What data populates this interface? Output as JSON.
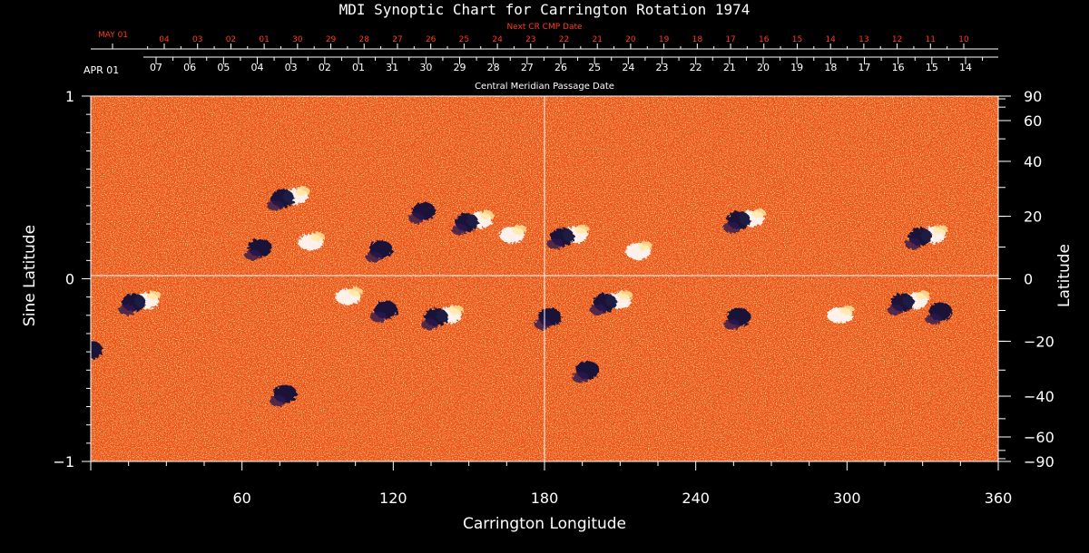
{
  "chart_data": {
    "type": "heatmap",
    "title": "MDI Synoptic Chart for Carrington Rotation 1974",
    "xlabel": "Carrington Longitude",
    "ylabel_left": "Sine Latitude",
    "ylabel_right": "Latitude",
    "xlim": [
      0,
      360
    ],
    "ylim": [
      -1,
      1
    ],
    "x_ticks": [
      60,
      120,
      180,
      240,
      300,
      360
    ],
    "y_ticks_left": [
      {
        "value": 1,
        "label": "1"
      },
      {
        "value": 0,
        "label": "0"
      },
      {
        "value": -1,
        "label": "−1"
      }
    ],
    "y_ticks_right_latitude": [
      90,
      60,
      40,
      20,
      0,
      -20,
      -40,
      -60,
      -90
    ],
    "y_ticks_right_labels": [
      "90",
      "60",
      "40",
      "20",
      "0",
      "−20",
      "−40",
      "−60",
      "−90"
    ],
    "cmp_axis_label": "Central Meridian Passage Date",
    "cmp_start_label": "APR 01",
    "cmp_dates": [
      "07",
      "06",
      "05",
      "04",
      "03",
      "02",
      "01",
      "31",
      "30",
      "29",
      "28",
      "27",
      "26",
      "25",
      "24",
      "23",
      "22",
      "21",
      "20",
      "19",
      "18",
      "17",
      "16",
      "15",
      "14"
    ],
    "next_cr_axis_label": "Next CR CMP Date",
    "next_cr_start_label": "MAY 01",
    "next_cr_dates": [
      "04",
      "03",
      "02",
      "01",
      "30",
      "29",
      "28",
      "27",
      "26",
      "25",
      "24",
      "23",
      "22",
      "21",
      "20",
      "19",
      "18",
      "17",
      "16",
      "15",
      "14",
      "13",
      "12",
      "11",
      "10"
    ],
    "background_color": "#ee4e12",
    "positive_color": "#ffffff",
    "negative_color": "#10103a",
    "next_cr_color": "#ff3a1e",
    "grid": true,
    "active_regions": [
      {
        "lon": 79,
        "sinlat": 0.45,
        "polarity": "mixed"
      },
      {
        "lon": 70,
        "sinlat": 0.18,
        "polarity": "negative"
      },
      {
        "lon": 85,
        "sinlat": 0.2,
        "polarity": "positive"
      },
      {
        "lon": 135,
        "sinlat": 0.38,
        "polarity": "negative"
      },
      {
        "lon": 152,
        "sinlat": 0.32,
        "polarity": "mixed"
      },
      {
        "lon": 165,
        "sinlat": 0.24,
        "polarity": "positive"
      },
      {
        "lon": 118,
        "sinlat": 0.17,
        "polarity": "negative"
      },
      {
        "lon": 190,
        "sinlat": 0.24,
        "polarity": "mixed"
      },
      {
        "lon": 215,
        "sinlat": 0.15,
        "polarity": "positive"
      },
      {
        "lon": 260,
        "sinlat": 0.33,
        "polarity": "mixed"
      },
      {
        "lon": 332,
        "sinlat": 0.24,
        "polarity": "mixed"
      },
      {
        "lon": 20,
        "sinlat": -0.12,
        "polarity": "mixed"
      },
      {
        "lon": 3,
        "sinlat": -0.38,
        "polarity": "negative"
      },
      {
        "lon": 120,
        "sinlat": -0.16,
        "polarity": "negative"
      },
      {
        "lon": 140,
        "sinlat": -0.2,
        "polarity": "mixed"
      },
      {
        "lon": 100,
        "sinlat": -0.1,
        "polarity": "positive"
      },
      {
        "lon": 185,
        "sinlat": -0.2,
        "polarity": "negative"
      },
      {
        "lon": 207,
        "sinlat": -0.12,
        "polarity": "mixed"
      },
      {
        "lon": 200,
        "sinlat": -0.49,
        "polarity": "negative"
      },
      {
        "lon": 260,
        "sinlat": -0.2,
        "polarity": "negative"
      },
      {
        "lon": 295,
        "sinlat": -0.2,
        "polarity": "positive"
      },
      {
        "lon": 325,
        "sinlat": -0.12,
        "polarity": "mixed"
      },
      {
        "lon": 340,
        "sinlat": -0.17,
        "polarity": "negative"
      },
      {
        "lon": 80,
        "sinlat": -0.62,
        "polarity": "negative"
      }
    ]
  }
}
